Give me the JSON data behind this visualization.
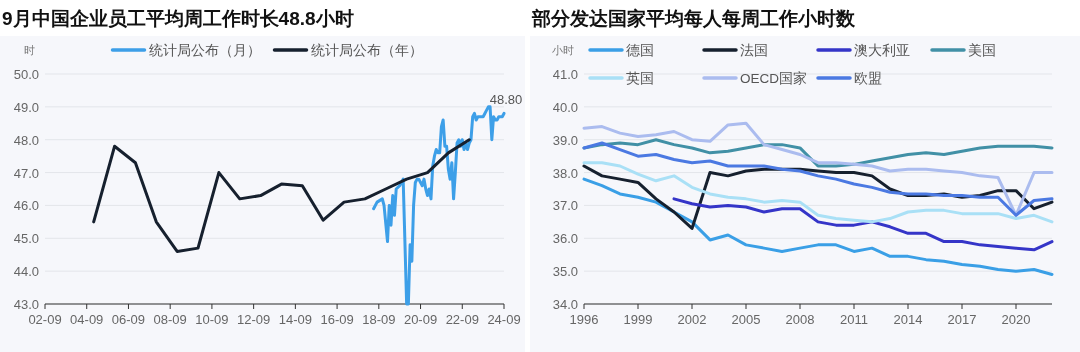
{
  "chart_data": [
    {
      "type": "line",
      "title": "9月中国企业员工平均周工作时长48.8小时",
      "ylabel": "时",
      "legend": "top",
      "grid": "y",
      "xlim": [
        "2002-09",
        "2024-09"
      ],
      "xticks": [
        {
          "value": "2002-09",
          "label": "02-09"
        },
        {
          "value": "2004-09",
          "label": "04-09"
        },
        {
          "value": "2006-09",
          "label": "06-09"
        },
        {
          "value": "2008-09",
          "label": "08-09"
        },
        {
          "value": "2010-09",
          "label": "10-09"
        },
        {
          "value": "2012-09",
          "label": "12-09"
        },
        {
          "value": "2014-09",
          "label": "14-09"
        },
        {
          "value": "2016-09",
          "label": "16-09"
        },
        {
          "value": "2018-09",
          "label": "18-09"
        },
        {
          "value": "2020-09",
          "label": "20-09"
        },
        {
          "value": "2022-09",
          "label": "22-09"
        },
        {
          "value": "2024-09",
          "label": "24-09"
        }
      ],
      "ylim": [
        43,
        50
      ],
      "yticks": [
        {
          "value": 43,
          "label": "43.0"
        },
        {
          "value": 44,
          "label": "44.0"
        },
        {
          "value": 45,
          "label": "45.0"
        },
        {
          "value": 46,
          "label": "46.0"
        },
        {
          "value": 47,
          "label": "47.0"
        },
        {
          "value": 48,
          "label": "48.0"
        },
        {
          "value": 49,
          "label": "49.0"
        },
        {
          "value": 50,
          "label": "50.0"
        }
      ],
      "series": [
        {
          "name": "统计局公布（月）",
          "color": "#3d9fe8",
          "x": [
            "2018-06",
            "2018-08",
            "2018-11",
            "2018-12",
            "2019-02",
            "2019-03",
            "2019-04",
            "2019-05",
            "2019-06",
            "2019-07",
            "2019-09",
            "2019-11",
            "2020-01",
            "2020-02",
            "2020-03",
            "2020-04",
            "2020-05",
            "2020-06",
            "2020-07",
            "2020-08",
            "2020-09",
            "2020-10",
            "2020-11",
            "2020-12",
            "2021-01",
            "2021-02",
            "2021-03",
            "2021-04",
            "2021-05",
            "2021-06",
            "2021-07",
            "2021-08",
            "2021-09",
            "2021-10",
            "2021-11",
            "2021-12",
            "2022-01",
            "2022-02",
            "2022-03",
            "2022-04",
            "2022-05",
            "2022-06",
            "2022-07",
            "2022-08",
            "2022-09",
            "2022-10",
            "2022-11",
            "2022-12",
            "2023-01",
            "2023-02",
            "2023-03",
            "2023-04",
            "2023-05",
            "2023-06",
            "2023-07",
            "2023-08",
            "2023-09",
            "2023-10",
            "2023-11",
            "2023-12",
            "2024-01",
            "2024-02",
            "2024-03",
            "2024-04",
            "2024-05",
            "2024-06",
            "2024-07",
            "2024-08",
            "2024-09"
          ],
          "values": [
            45.9,
            46.1,
            46.2,
            46.0,
            44.9,
            46.0,
            45.4,
            46.3,
            45.7,
            46.5,
            46.6,
            46.8,
            43.0,
            43.0,
            44.8,
            44.3,
            46.0,
            46.7,
            46.8,
            46.8,
            46.7,
            46.6,
            46.8,
            46.5,
            46.3,
            46.5,
            46.2,
            47.2,
            47.5,
            47.7,
            47.6,
            47.6,
            48.4,
            48.6,
            47.8,
            47.8,
            47.1,
            46.8,
            47.3,
            46.2,
            47.0,
            47.9,
            48.0,
            47.8,
            48.0,
            47.7,
            47.9,
            47.7,
            47.9,
            48.0,
            48.7,
            48.8,
            48.6,
            48.7,
            48.7,
            48.7,
            48.7,
            48.8,
            48.9,
            49.0,
            49.0,
            48.0,
            48.7,
            48.6,
            48.6,
            48.7,
            48.7,
            48.7,
            48.8
          ]
        },
        {
          "name": "统计局公布（年）",
          "color": "#16202e",
          "x": [
            "2005-01",
            "2006-01",
            "2007-01",
            "2008-01",
            "2009-01",
            "2010-01",
            "2011-01",
            "2012-01",
            "2013-01",
            "2014-01",
            "2015-01",
            "2016-01",
            "2017-01",
            "2018-01",
            "2019-01",
            "2020-01",
            "2021-01",
            "2022-01",
            "2023-01"
          ],
          "values": [
            45.5,
            47.8,
            47.3,
            45.5,
            44.6,
            44.7,
            47.0,
            46.2,
            46.3,
            46.65,
            46.6,
            45.55,
            46.1,
            46.2,
            46.5,
            46.8,
            47.0,
            47.6,
            48.0
          ]
        }
      ],
      "annotations": [
        {
          "text": "48.80",
          "x": "2024-09",
          "y": 48.8
        }
      ]
    },
    {
      "type": "line",
      "title": "部分发达国家平均每人每周工作小时数",
      "ylabel": "小时",
      "legend": "top",
      "grid": "y",
      "x": [
        1996,
        1997,
        1998,
        1999,
        2000,
        2001,
        2002,
        2003,
        2004,
        2005,
        2006,
        2007,
        2008,
        2009,
        2010,
        2011,
        2012,
        2013,
        2014,
        2015,
        2016,
        2017,
        2018,
        2019,
        2020,
        2021,
        2022
      ],
      "xlim": [
        1996,
        2022
      ],
      "xticks": [
        1996,
        1999,
        2002,
        2005,
        2008,
        2011,
        2014,
        2017,
        2020
      ],
      "ylim": [
        34,
        41
      ],
      "yticks": [
        {
          "value": 34,
          "label": "34.0"
        },
        {
          "value": 35,
          "label": "35.0"
        },
        {
          "value": 36,
          "label": "36.0"
        },
        {
          "value": 37,
          "label": "37.0"
        },
        {
          "value": 38,
          "label": "38.0"
        },
        {
          "value": 39,
          "label": "39.0"
        },
        {
          "value": 40,
          "label": "40.0"
        },
        {
          "value": 41,
          "label": "41.0"
        }
      ],
      "series": [
        {
          "name": "德国",
          "color": "#3a9fe6",
          "values": [
            37.8,
            37.6,
            37.35,
            37.25,
            37.1,
            36.8,
            36.5,
            35.95,
            36.1,
            35.8,
            35.7,
            35.6,
            35.7,
            35.8,
            35.8,
            35.6,
            35.7,
            35.45,
            35.45,
            35.35,
            35.3,
            35.2,
            35.15,
            35.05,
            35.0,
            35.05,
            34.9
          ]
        },
        {
          "name": "法国",
          "color": "#16202e",
          "values": [
            38.2,
            37.9,
            37.8,
            37.7,
            37.2,
            36.8,
            36.3,
            38.0,
            37.9,
            38.05,
            38.1,
            38.1,
            38.1,
            38.05,
            38.0,
            38.0,
            37.9,
            37.5,
            37.3,
            37.3,
            37.35,
            37.25,
            37.3,
            37.45,
            37.45,
            36.9,
            37.1
          ]
        },
        {
          "name": "澳大利亚",
          "color": "#3535c8",
          "values": [
            null,
            null,
            null,
            null,
            null,
            37.2,
            37.05,
            36.95,
            37.0,
            36.95,
            36.8,
            36.9,
            36.9,
            36.5,
            36.4,
            36.4,
            36.5,
            36.35,
            36.15,
            36.15,
            35.9,
            35.9,
            35.8,
            35.75,
            35.7,
            35.65,
            35.9
          ]
        },
        {
          "name": "美国",
          "color": "#4190a6",
          "values": [
            38.75,
            38.85,
            38.9,
            38.85,
            39.0,
            38.85,
            38.75,
            38.6,
            38.65,
            38.75,
            38.85,
            38.85,
            38.75,
            38.2,
            38.2,
            38.25,
            38.35,
            38.45,
            38.55,
            38.6,
            38.55,
            38.65,
            38.75,
            38.8,
            38.8,
            38.8,
            38.75
          ]
        },
        {
          "name": "英国",
          "color": "#a9e0f6",
          "values": [
            38.3,
            38.3,
            38.2,
            37.95,
            37.75,
            37.9,
            37.55,
            37.35,
            37.25,
            37.2,
            37.1,
            37.15,
            37.1,
            36.7,
            36.6,
            36.55,
            36.5,
            36.6,
            36.8,
            36.85,
            36.85,
            36.75,
            36.75,
            36.75,
            36.6,
            36.7,
            36.5
          ]
        },
        {
          "name": "OECD国家",
          "color": "#abbcef",
          "values": [
            39.35,
            39.4,
            39.2,
            39.1,
            39.15,
            39.25,
            39.0,
            38.95,
            39.45,
            39.5,
            38.85,
            38.7,
            38.55,
            38.3,
            38.3,
            38.25,
            38.2,
            38.05,
            38.1,
            38.1,
            38.05,
            38.0,
            37.9,
            37.85,
            36.7,
            38.0,
            38.0
          ]
        },
        {
          "name": "欧盟",
          "color": "#4b79e2",
          "values": [
            38.75,
            38.9,
            38.7,
            38.5,
            38.55,
            38.4,
            38.3,
            38.35,
            38.2,
            38.2,
            38.2,
            38.1,
            38.05,
            37.9,
            37.8,
            37.65,
            37.55,
            37.4,
            37.35,
            37.35,
            37.3,
            37.3,
            37.25,
            37.25,
            36.7,
            37.15,
            37.2
          ]
        }
      ]
    }
  ]
}
